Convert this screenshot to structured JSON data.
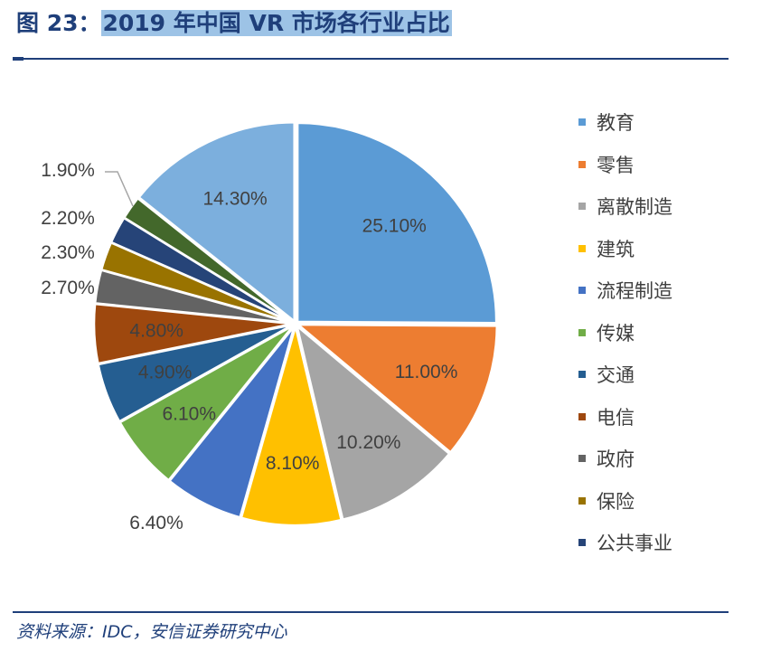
{
  "title": {
    "prefix": "图 23：",
    "text": "2019 年中国 VR 市场各行业占比"
  },
  "source": "资料来源：IDC，安信证券研究中心",
  "chart_data": {
    "type": "pie",
    "start": "12 o'clock",
    "direction": "clockwise",
    "legend_position": "right",
    "slices": [
      {
        "name": "教育",
        "value": 25.1,
        "label": "25.10%",
        "color": "#5b9bd5"
      },
      {
        "name": "零售",
        "value": 11.0,
        "label": "11.00%",
        "color": "#ed7d31"
      },
      {
        "name": "离散制造",
        "value": 10.2,
        "label": "10.20%",
        "color": "#a5a5a5"
      },
      {
        "name": "建筑",
        "value": 8.1,
        "label": "8.10%",
        "color": "#ffc000"
      },
      {
        "name": "流程制造",
        "value": 6.4,
        "label": "6.40%",
        "color": "#4472c4"
      },
      {
        "name": "传媒",
        "value": 6.1,
        "label": "6.10%",
        "color": "#70ad47"
      },
      {
        "name": "交通",
        "value": 4.9,
        "label": "4.90%",
        "color": "#255e91"
      },
      {
        "name": "电信",
        "value": 4.8,
        "label": "4.80%",
        "color": "#9e480e"
      },
      {
        "name": "政府",
        "value": 2.7,
        "label": "2.70%",
        "color": "#636363"
      },
      {
        "name": "保险",
        "value": 2.3,
        "label": "2.30%",
        "color": "#997300"
      },
      {
        "name": "公共事业",
        "value": 2.2,
        "label": "2.20%",
        "color": "#264478"
      },
      {
        "name": "",
        "value": 1.9,
        "label": "1.90%",
        "color": "#43682b"
      },
      {
        "name": "",
        "value": 14.3,
        "label": "14.30%",
        "color": "#7cafdd"
      }
    ]
  }
}
